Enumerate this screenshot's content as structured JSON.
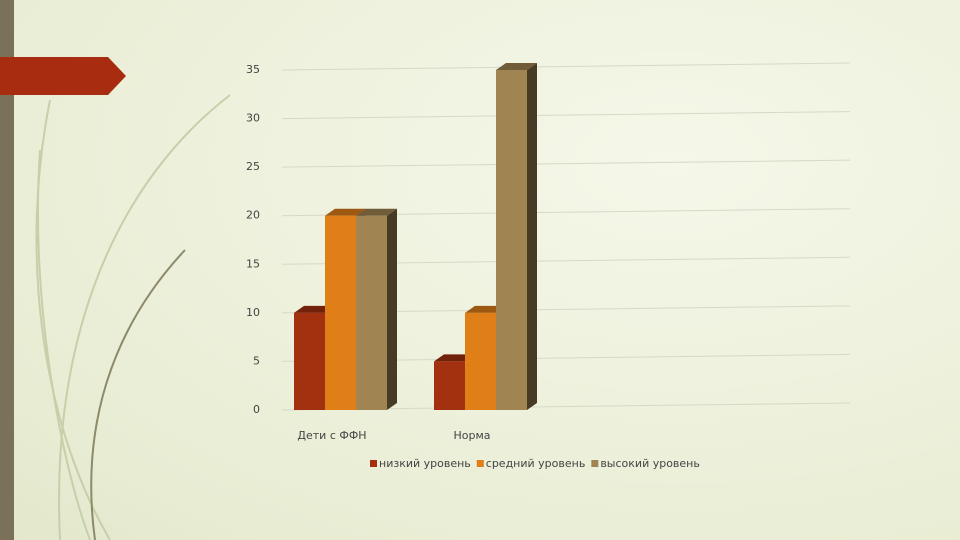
{
  "chart_data": {
    "type": "bar3d",
    "categories": [
      "Дети с ФФН",
      "Норма"
    ],
    "series": [
      {
        "name": "низкий уровень",
        "color": "#a3300f",
        "values": [
          10,
          5
        ]
      },
      {
        "name": "средний уровень",
        "color": "#e07f18",
        "values": [
          20,
          10
        ]
      },
      {
        "name": "высокий уровень",
        "color": "#a08452",
        "values": [
          20,
          35
        ]
      }
    ],
    "ylim": [
      0,
      35
    ],
    "yticks": [
      0,
      5,
      10,
      15,
      20,
      25,
      30,
      35
    ],
    "grid": true,
    "legend": "bottom"
  }
}
